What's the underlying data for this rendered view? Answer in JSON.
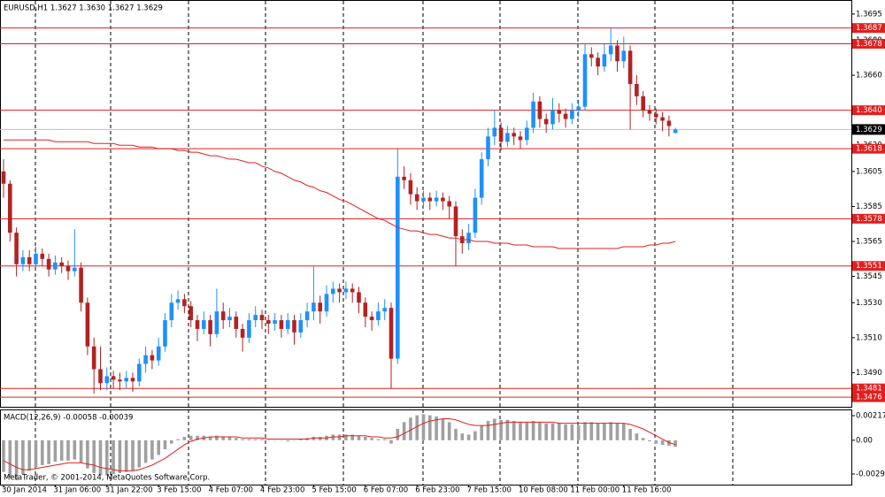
{
  "chart_data": [
    {
      "type": "candlestick",
      "title": "EURUSD,H1  1.3627 1.3630 1.3627 1.3629",
      "categories": [
        "30 Jan 2014",
        null,
        null,
        null,
        null,
        null,
        null,
        null,
        "31 Jan 06:00",
        null,
        null,
        null,
        null,
        null,
        null,
        null,
        "31 Jan 22:00",
        null,
        null,
        null,
        null,
        null,
        null,
        null,
        "3 Feb 15:00",
        null,
        null,
        null,
        null,
        null,
        null,
        null,
        "4 Feb 07:00",
        null,
        null,
        null,
        null,
        null,
        null,
        null,
        "4 Feb 23:00",
        null,
        null,
        null,
        null,
        null,
        null,
        null,
        "5 Feb 15:00",
        null,
        null,
        null,
        null,
        null,
        null,
        null,
        "6 Feb 07:00",
        null,
        null,
        null,
        null,
        null,
        null,
        null,
        "6 Feb 23:00",
        null,
        null,
        null,
        null,
        null,
        null,
        null,
        "7 Feb 15:00",
        null,
        null,
        null,
        null,
        null,
        null,
        null,
        "10 Feb 08:00",
        null,
        null,
        null,
        null,
        null,
        null,
        null,
        "11 Feb 00:00",
        null,
        null,
        null,
        null,
        null,
        null,
        null,
        "11 Feb 16:00",
        null,
        null,
        null,
        null,
        null,
        null,
        null,
        null
      ],
      "open": [
        1.3605,
        1.3598,
        1.357,
        1.3552,
        1.3556,
        1.3552,
        1.3558,
        1.3555,
        1.3549,
        1.3553,
        1.3551,
        1.3548,
        1.355,
        1.353,
        1.3505,
        1.3492,
        1.3484,
        1.3488,
        1.3486,
        1.3485,
        1.3487,
        1.3485,
        1.3495,
        1.35,
        1.3497,
        1.3505,
        1.352,
        1.353,
        1.3532,
        1.3528,
        1.352,
        1.3515,
        1.352,
        1.3512,
        1.3525,
        1.352,
        1.3522,
        1.3515,
        1.351,
        1.352,
        1.3523,
        1.352,
        1.3518,
        1.352,
        1.3515,
        1.352,
        1.3513,
        1.352,
        1.3525,
        1.353,
        1.3525,
        1.3535,
        1.3538,
        1.3536,
        1.3538,
        1.3536,
        1.353,
        1.3522,
        1.352,
        1.3525,
        1.3527,
        1.3498,
        1.3602,
        1.36,
        1.3592,
        1.3588,
        1.359,
        1.3588,
        1.359,
        1.3588,
        1.3585,
        1.3568,
        1.3564,
        1.357,
        1.359,
        1.3612,
        1.3625,
        1.363,
        1.3622,
        1.3627,
        1.3625,
        1.3623,
        1.363,
        1.3645,
        1.3635,
        1.3632,
        1.364,
        1.3638,
        1.3635,
        1.364,
        1.3642,
        1.3672,
        1.367,
        1.3665,
        1.3672,
        1.3677,
        1.3668,
        1.3674,
        1.3655,
        1.3648,
        1.364,
        1.3638,
        1.3636,
        1.3634,
        1.3627
      ],
      "high": [
        1.3612,
        1.36,
        1.3573,
        1.356,
        1.356,
        1.3562,
        1.3561,
        1.3558,
        1.3557,
        1.3556,
        1.3554,
        1.3572,
        1.3553,
        1.3533,
        1.351,
        1.3505,
        1.3493,
        1.3491,
        1.349,
        1.3491,
        1.349,
        1.3498,
        1.3505,
        1.3503,
        1.351,
        1.3524,
        1.3535,
        1.3537,
        1.3535,
        1.3531,
        1.3523,
        1.3525,
        1.3523,
        1.3538,
        1.353,
        1.3527,
        1.3525,
        1.3518,
        1.3524,
        1.3528,
        1.3526,
        1.3523,
        1.3524,
        1.3523,
        1.3524,
        1.3523,
        1.3524,
        1.353,
        1.3551,
        1.3534,
        1.354,
        1.3542,
        1.3541,
        1.3542,
        1.3541,
        1.3539,
        1.3533,
        1.3525,
        1.353,
        1.3532,
        1.353,
        1.3618,
        1.3608,
        1.3604,
        1.3596,
        1.3594,
        1.3593,
        1.3594,
        1.3593,
        1.3591,
        1.3588,
        1.3572,
        1.3575,
        1.3595,
        1.3616,
        1.363,
        1.364,
        1.3633,
        1.3631,
        1.363,
        1.3628,
        1.3634,
        1.365,
        1.3648,
        1.3638,
        1.3647,
        1.3644,
        1.3641,
        1.3644,
        1.3646,
        1.3678,
        1.3676,
        1.3673,
        1.3678,
        1.3687,
        1.368,
        1.3682,
        1.3677,
        1.366,
        1.3651,
        1.3643,
        1.3641,
        1.3639,
        1.3637,
        1.363
      ],
      "low": [
        1.359,
        1.3565,
        1.3545,
        1.3548,
        1.3548,
        1.355,
        1.3551,
        1.3545,
        1.3546,
        1.3547,
        1.3543,
        1.3545,
        1.3525,
        1.35,
        1.3478,
        1.348,
        1.348,
        1.3481,
        1.348,
        1.3481,
        1.3479,
        1.3482,
        1.349,
        1.3492,
        1.3494,
        1.3502,
        1.3516,
        1.3526,
        1.3524,
        1.3516,
        1.3508,
        1.3512,
        1.3505,
        1.351,
        1.3515,
        1.3516,
        1.351,
        1.3502,
        1.3507,
        1.3516,
        1.3515,
        1.3512,
        1.3514,
        1.351,
        1.3512,
        1.3506,
        1.351,
        1.3516,
        1.352,
        1.3518,
        1.3522,
        1.353,
        1.353,
        1.3532,
        1.353,
        1.3524,
        1.3516,
        1.3514,
        1.3517,
        1.352,
        1.3481,
        1.3495,
        1.3595,
        1.3586,
        1.3583,
        1.3585,
        1.3583,
        1.3585,
        1.3583,
        1.3578,
        1.3551,
        1.3558,
        1.356,
        1.3567,
        1.3586,
        1.3608,
        1.362,
        1.3617,
        1.3619,
        1.362,
        1.3618,
        1.362,
        1.3627,
        1.363,
        1.3627,
        1.3629,
        1.3633,
        1.363,
        1.3632,
        1.3636,
        1.364,
        1.3665,
        1.366,
        1.3662,
        1.3668,
        1.3662,
        1.3664,
        1.3629,
        1.3643,
        1.3636,
        1.3634,
        1.3632,
        1.3628,
        1.3625,
        1.3627
      ],
      "close": [
        1.3598,
        1.357,
        1.3552,
        1.3556,
        1.3552,
        1.3558,
        1.3555,
        1.3549,
        1.3553,
        1.3551,
        1.3548,
        1.355,
        1.353,
        1.3505,
        1.3492,
        1.3484,
        1.3488,
        1.3486,
        1.3485,
        1.3487,
        1.3485,
        1.3495,
        1.35,
        1.3497,
        1.3505,
        1.352,
        1.353,
        1.3532,
        1.3528,
        1.352,
        1.3515,
        1.352,
        1.3512,
        1.3525,
        1.352,
        1.3522,
        1.3515,
        1.351,
        1.352,
        1.3523,
        1.352,
        1.3518,
        1.352,
        1.3515,
        1.352,
        1.3513,
        1.352,
        1.3525,
        1.353,
        1.3525,
        1.3535,
        1.3538,
        1.3536,
        1.3538,
        1.3536,
        1.353,
        1.3522,
        1.352,
        1.3525,
        1.3527,
        1.3498,
        1.3602,
        1.36,
        1.3592,
        1.3588,
        1.359,
        1.3588,
        1.359,
        1.3588,
        1.3585,
        1.3568,
        1.3564,
        1.357,
        1.359,
        1.3612,
        1.3625,
        1.363,
        1.3622,
        1.3627,
        1.3625,
        1.3623,
        1.363,
        1.3645,
        1.3635,
        1.3632,
        1.364,
        1.3638,
        1.3635,
        1.364,
        1.3642,
        1.3672,
        1.367,
        1.3665,
        1.3672,
        1.3677,
        1.3668,
        1.3674,
        1.3655,
        1.3648,
        1.364,
        1.3638,
        1.3636,
        1.3634,
        1.3631,
        1.3629
      ],
      "ma": [
        1.3623,
        1.3623,
        1.3623,
        1.3623,
        1.3623,
        1.3623,
        1.3623,
        1.3623,
        1.3622,
        1.3622,
        1.3622,
        1.3622,
        1.3622,
        1.3622,
        1.3621,
        1.3621,
        1.3621,
        1.3621,
        1.362,
        1.362,
        1.362,
        1.3619,
        1.3619,
        1.3619,
        1.3618,
        1.3618,
        1.3618,
        1.3617,
        1.3617,
        1.3616,
        1.3616,
        1.3615,
        1.3614,
        1.3614,
        1.3613,
        1.3612,
        1.3612,
        1.3611,
        1.361,
        1.361,
        1.3608,
        1.3607,
        1.3605,
        1.3604,
        1.3602,
        1.36,
        1.3599,
        1.3597,
        1.3596,
        1.3594,
        1.3593,
        1.3591,
        1.3589,
        1.3588,
        1.3586,
        1.3584,
        1.3582,
        1.358,
        1.3578,
        1.3577,
        1.3575,
        1.3573,
        1.3572,
        1.3571,
        1.3571,
        1.357,
        1.3569,
        1.3569,
        1.3568,
        1.3567,
        1.3567,
        1.3566,
        1.3566,
        1.3565,
        1.3565,
        1.3565,
        1.3564,
        1.3564,
        1.3564,
        1.3563,
        1.3563,
        1.3563,
        1.3562,
        1.3562,
        1.3562,
        1.3562,
        1.3561,
        1.3561,
        1.3561,
        1.3561,
        1.3561,
        1.3561,
        1.3561,
        1.3561,
        1.3561,
        1.3561,
        1.3562,
        1.3562,
        1.3562,
        1.3562,
        1.3563,
        1.3563,
        1.3564,
        1.3564,
        1.3565
      ],
      "up_color": "#1e90ff",
      "down_color": "#b22222",
      "ma_color": "#e02020",
      "ylim": [
        1.3471,
        1.3702
      ],
      "yticks": [
        1.3695,
        {
          "value": 1.368,
          "label": "1.3680"
        },
        {
          "value": 1.366,
          "label": "1.3660"
        },
        {
          "value": 1.364,
          "label": "1.3640"
        },
        {
          "value": 1.362,
          "label": "1.3620"
        },
        1.3605,
        1.3585,
        1.3565,
        1.3545,
        {
          "value": 1.353,
          "label": "1.3530"
        },
        {
          "value": 1.351,
          "label": "1.3510"
        },
        {
          "value": 1.349,
          "label": "1.3490"
        }
      ],
      "levels": [
        1.3687,
        1.3678,
        {
          "value": 1.364,
          "label": "1.3640"
        },
        1.3618,
        1.3578,
        1.3551,
        1.3481,
        1.3476
      ],
      "level_color": "#e02020",
      "current_price": 1.3629
    },
    {
      "type": "macd",
      "title": "MACD(12,26,9) -0.00058 -0.00039",
      "copyright": "MetaTrader, © 2001-2014, MetaQuotes Software Corp.",
      "series": [
        {
          "color": "#a0a0a0",
          "values": [
            -0.0028,
            -0.0033,
            -0.0035,
            -0.003,
            -0.0027,
            -0.0024,
            -0.0022,
            -0.0021,
            -0.0019,
            -0.0018,
            -0.0018,
            -0.0017,
            -0.002,
            -0.0025,
            -0.0029,
            -0.0031,
            -0.0031,
            -0.003,
            -0.0029,
            -0.0028,
            -0.0027,
            -0.0024,
            -0.002,
            -0.0017,
            -0.0013,
            -0.0008,
            -0.0003,
            0.0001,
            0.0003,
            0.0004,
            0.0004,
            0.0004,
            0.0003,
            0.0004,
            0.0003,
            0.0003,
            0.0002,
            0.0001,
            0.0001,
            0.0001,
            0.0001,
            0.0,
            0.0,
            0.0,
            -0.0001,
            0.0,
            0.0001,
            0.0002,
            0.0003,
            0.0003,
            0.0004,
            0.0005,
            0.0005,
            0.0005,
            0.0005,
            0.0004,
            0.0003,
            0.0002,
            0.0001,
            0.0001,
            -0.0003,
            0.001,
            0.0016,
            0.002,
            0.0022,
            0.0023,
            0.0022,
            0.0021,
            0.0019,
            0.0016,
            0.001,
            0.0006,
            0.0005,
            0.0008,
            0.0013,
            0.0017,
            0.0019,
            0.0018,
            0.0018,
            0.0017,
            0.0016,
            0.0016,
            0.0017,
            0.0016,
            0.0015,
            0.0015,
            0.0015,
            0.0014,
            0.0014,
            0.0013,
            0.0016,
            0.0016,
            0.0015,
            0.0015,
            0.0016,
            0.0015,
            0.0015,
            0.001,
            0.0006,
            0.0002,
            -0.0001,
            -0.0003,
            -0.0004,
            -0.0005,
            -0.00058
          ]
        },
        {
          "color": "#e02020",
          "values": [
            -0.0018,
            -0.0021,
            -0.0024,
            -0.0026,
            -0.0026,
            -0.0025,
            -0.0024,
            -0.0023,
            -0.0022,
            -0.0021,
            -0.002,
            -0.002,
            -0.002,
            -0.0021,
            -0.0022,
            -0.0024,
            -0.0025,
            -0.0026,
            -0.0027,
            -0.0027,
            -0.0027,
            -0.0026,
            -0.0024,
            -0.0022,
            -0.0019,
            -0.0016,
            -0.0012,
            -0.0008,
            -0.0004,
            -0.0001,
            0.0001,
            0.0002,
            0.0003,
            0.0003,
            0.0003,
            0.0003,
            0.0003,
            0.0002,
            0.0002,
            0.0002,
            0.0002,
            0.0001,
            0.0001,
            0.0001,
            0.0001,
            0.0001,
            0.0001,
            0.0001,
            0.0002,
            0.0002,
            0.0002,
            0.0003,
            0.0003,
            0.0004,
            0.0004,
            0.0004,
            0.0004,
            0.0003,
            0.0003,
            0.0002,
            0.0002,
            0.0003,
            0.0006,
            0.0009,
            0.0012,
            0.0015,
            0.0017,
            0.0018,
            0.0019,
            0.0019,
            0.0018,
            0.0016,
            0.0014,
            0.0013,
            0.0013,
            0.0013,
            0.0014,
            0.0015,
            0.0016,
            0.0016,
            0.0016,
            0.0016,
            0.0016,
            0.0016,
            0.0016,
            0.0016,
            0.0015,
            0.0015,
            0.0015,
            0.0015,
            0.0015,
            0.0015,
            0.0015,
            0.0015,
            0.0015,
            0.0015,
            0.0015,
            0.0014,
            0.0012,
            0.001,
            0.0007,
            0.0004,
            0.0001,
            -0.0002,
            -0.00039
          ]
        }
      ],
      "ylim": [
        -0.00392,
        0.00272
      ],
      "yticks": [
        0.00217,
        {
          "value": 0,
          "label": "0.00"
        },
        -0.00298
      ]
    }
  ]
}
